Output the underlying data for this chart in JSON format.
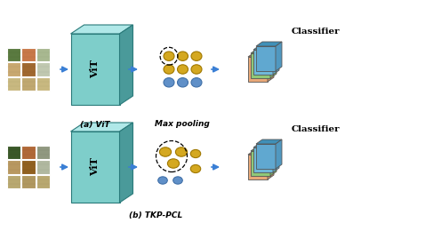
{
  "bg_color": "#ffffff",
  "arrow_color": "#3a7fd5",
  "vit_face_color": "#7ececa",
  "vit_side_color": "#4a9a9a",
  "vit_top_color": "#b0e8e8",
  "classifier_colors_face": [
    "#e8a878",
    "#90c878",
    "#70b8d8"
  ],
  "classifier_colors_top": [
    "#d09060",
    "#78b060",
    "#58a0c0"
  ],
  "classifier_colors_side": [
    "#c08050",
    "#68a050",
    "#4890b0"
  ],
  "circle_gold": "#d4a820",
  "circle_gold_edge": "#b08000",
  "circle_blue": "#6090c8",
  "circle_blue_edge": "#4070a8",
  "title_top_a": "(a) ViT",
  "title_top_b": "Max pooling",
  "title_bottom": "(b) TKP-PCL",
  "fig_width": 4.78,
  "fig_height": 2.78,
  "dpi": 100,
  "photo_colors_top": [
    [
      "#5a7a40",
      "#c87848",
      "#a8b890"
    ],
    [
      "#c8a870",
      "#a06830",
      "#c0c8b0"
    ],
    [
      "#c8b880",
      "#c0a870",
      "#c8b880"
    ]
  ],
  "photo_colors_bottom": [
    [
      "#3a5828",
      "#b06838",
      "#909880"
    ],
    [
      "#b89860",
      "#906020",
      "#b0b8a0"
    ],
    [
      "#b8a870",
      "#b09860",
      "#b8a870"
    ]
  ]
}
